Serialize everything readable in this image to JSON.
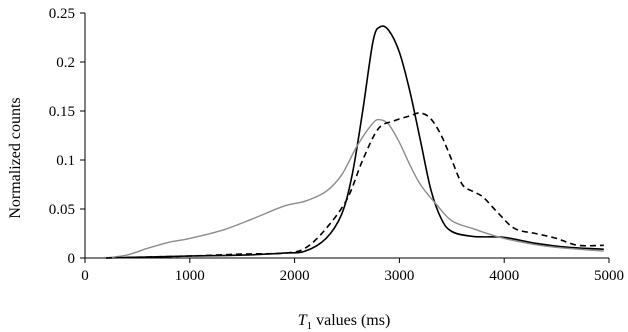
{
  "chart_data": {
    "type": "line",
    "xlabel_main": "T",
    "xlabel_sub": "1",
    "xlabel_rest": " values (ms)",
    "ylabel": "Normalized counts",
    "xlim": [
      0,
      5000
    ],
    "ylim": [
      0,
      0.25
    ],
    "xticks": [
      0,
      1000,
      2000,
      3000,
      4000,
      5000
    ],
    "yticks": [
      0,
      0.05,
      0.1,
      0.15,
      0.2,
      0.25
    ],
    "xtick_labels": [
      "0",
      "1000",
      "2000",
      "3000",
      "4000",
      "5000"
    ],
    "ytick_labels": [
      "0",
      "0.05",
      "0.1",
      "0.15",
      "0.2",
      "0.25"
    ],
    "grid": false,
    "legend": "none",
    "series": [
      {
        "style": "solid",
        "color": "#000000",
        "points": [
          [
            200,
            0
          ],
          [
            600,
            0.001
          ],
          [
            1000,
            0.002
          ],
          [
            1500,
            0.003
          ],
          [
            1900,
            0.005
          ],
          [
            2100,
            0.007
          ],
          [
            2300,
            0.02
          ],
          [
            2450,
            0.045
          ],
          [
            2550,
            0.085
          ],
          [
            2650,
            0.15
          ],
          [
            2750,
            0.222
          ],
          [
            2820,
            0.236
          ],
          [
            2900,
            0.232
          ],
          [
            3000,
            0.21
          ],
          [
            3100,
            0.17
          ],
          [
            3200,
            0.12
          ],
          [
            3300,
            0.07
          ],
          [
            3400,
            0.04
          ],
          [
            3500,
            0.027
          ],
          [
            3700,
            0.022
          ],
          [
            4000,
            0.021
          ],
          [
            4300,
            0.015
          ],
          [
            4600,
            0.011
          ],
          [
            4950,
            0.009
          ]
        ]
      },
      {
        "style": "solid",
        "color": "#8c8c8c",
        "points": [
          [
            200,
            0
          ],
          [
            400,
            0.003
          ],
          [
            600,
            0.01
          ],
          [
            800,
            0.016
          ],
          [
            1000,
            0.02
          ],
          [
            1300,
            0.028
          ],
          [
            1600,
            0.04
          ],
          [
            1900,
            0.053
          ],
          [
            2100,
            0.058
          ],
          [
            2300,
            0.068
          ],
          [
            2450,
            0.085
          ],
          [
            2600,
            0.115
          ],
          [
            2750,
            0.138
          ],
          [
            2820,
            0.141
          ],
          [
            2900,
            0.136
          ],
          [
            3000,
            0.118
          ],
          [
            3100,
            0.095
          ],
          [
            3200,
            0.075
          ],
          [
            3350,
            0.055
          ],
          [
            3500,
            0.038
          ],
          [
            3700,
            0.03
          ],
          [
            4000,
            0.02
          ],
          [
            4400,
            0.012
          ],
          [
            4950,
            0.007
          ]
        ]
      },
      {
        "style": "dashed",
        "color": "#000000",
        "points": [
          [
            200,
            0
          ],
          [
            600,
            0.001
          ],
          [
            1000,
            0.002
          ],
          [
            1500,
            0.004
          ],
          [
            1900,
            0.005
          ],
          [
            2100,
            0.01
          ],
          [
            2300,
            0.03
          ],
          [
            2500,
            0.06
          ],
          [
            2650,
            0.1
          ],
          [
            2800,
            0.132
          ],
          [
            2950,
            0.14
          ],
          [
            3100,
            0.145
          ],
          [
            3200,
            0.148
          ],
          [
            3300,
            0.142
          ],
          [
            3400,
            0.125
          ],
          [
            3500,
            0.1
          ],
          [
            3600,
            0.075
          ],
          [
            3700,
            0.068
          ],
          [
            3800,
            0.062
          ],
          [
            3950,
            0.045
          ],
          [
            4100,
            0.03
          ],
          [
            4300,
            0.025
          ],
          [
            4500,
            0.02
          ],
          [
            4700,
            0.013
          ],
          [
            4950,
            0.013
          ]
        ]
      }
    ]
  }
}
